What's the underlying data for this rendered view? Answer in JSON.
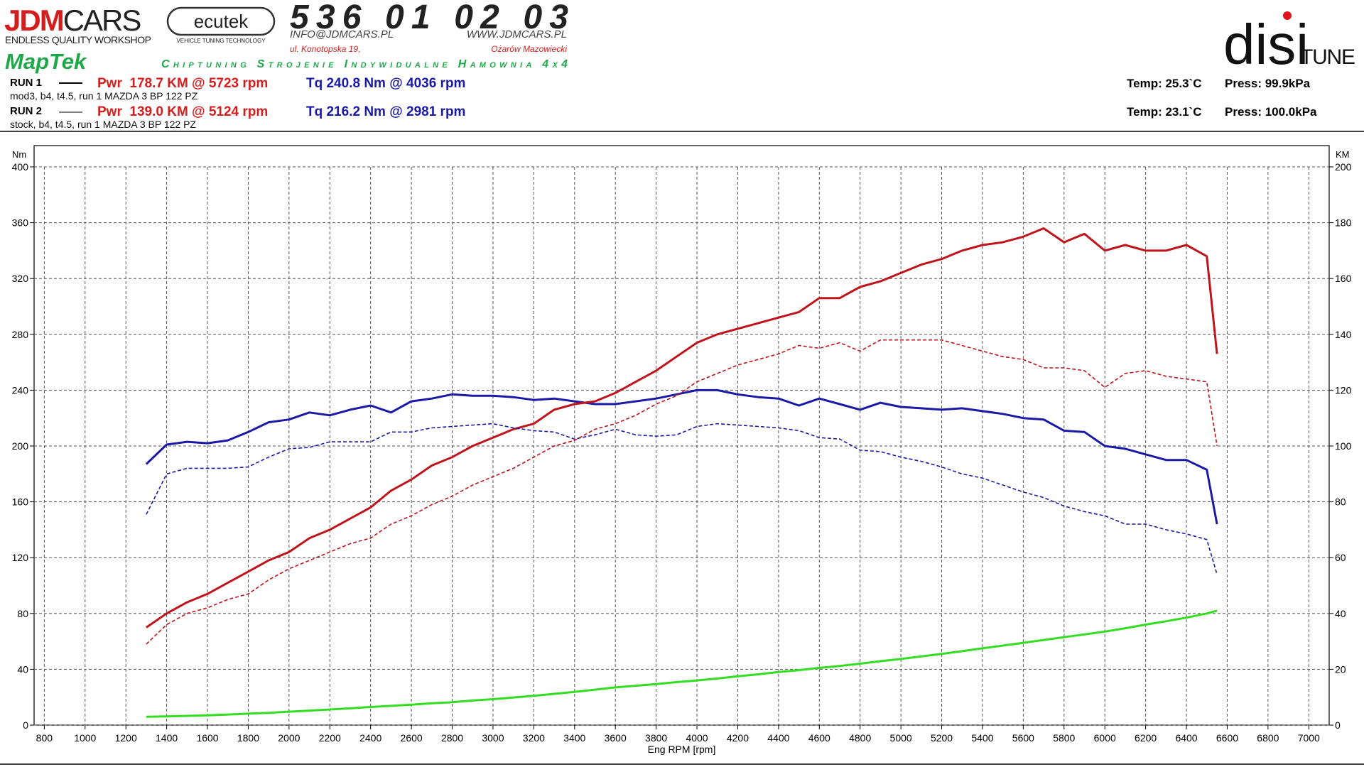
{
  "header": {
    "brand_red": "JDM",
    "brand_black": "CARS",
    "brand_tagline": "ENDLESS QUALITY WORKSHOP",
    "ecutek": "ecutek",
    "ecutek_tagline": "VEHICLE TUNING TECHNOLOGY",
    "phone": "536 01 02 03",
    "email": "INFO@JDMCARS.PL",
    "www": "WWW.JDMCARS.PL",
    "street": "ul. Konotopska 19,",
    "city": "Ożarów Mazowiecki",
    "maptek": "MapTek",
    "services": "Chiptuning Strojenie Indywidualne Hamownia 4x4",
    "disi": "disi",
    "tune": "TUNE"
  },
  "runs": [
    {
      "label": "RUN 1",
      "power": "Pwr  178.7 KM @ 5723 rpm",
      "torque": "Tq 240.8 Nm @ 4036 rpm",
      "desc": "mod3, b4, t4.5, run 1 MAZDA 3 BP 122 PZ",
      "temp": "Temp: 25.3`C",
      "press": "Press: 99.9kPa"
    },
    {
      "label": "RUN 2",
      "power": "Pwr  139.0 KM @ 5124 rpm",
      "torque": "Tq 216.2 Nm @ 2981 rpm",
      "desc": "stock, b4, t4.5, run 1 MAZDA 3 BP 122 PZ",
      "temp": "Temp: 23.1`C",
      "press": "Press: 100.0kPa"
    }
  ],
  "chart_data": {
    "type": "line",
    "xlabel": "Eng RPM [rpm]",
    "ylabel": "Nm",
    "y2label": "KM",
    "xlim": [
      750,
      7100
    ],
    "ylim": [
      0,
      400
    ],
    "y2lim": [
      0,
      200
    ],
    "xticks": [
      800,
      1000,
      1200,
      1400,
      1600,
      1800,
      2000,
      2200,
      2400,
      2600,
      2800,
      3000,
      3200,
      3400,
      3600,
      3800,
      4000,
      4200,
      4400,
      4600,
      4800,
      5000,
      5200,
      5400,
      5600,
      5800,
      6000,
      6200,
      6400,
      6600,
      6800,
      7000
    ],
    "yticks": [
      0,
      40,
      80,
      120,
      160,
      200,
      240,
      280,
      320,
      360,
      400
    ],
    "y2ticks": [
      0,
      20,
      40,
      60,
      80,
      100,
      120,
      140,
      160,
      180,
      200
    ],
    "grid": true,
    "x": [
      1300,
      1400,
      1500,
      1600,
      1700,
      1800,
      1900,
      2000,
      2100,
      2200,
      2300,
      2400,
      2500,
      2600,
      2700,
      2800,
      2900,
      3000,
      3100,
      3200,
      3300,
      3400,
      3500,
      3600,
      3700,
      3800,
      3900,
      4000,
      4100,
      4200,
      4300,
      4400,
      4500,
      4600,
      4700,
      4800,
      4900,
      5000,
      5100,
      5200,
      5300,
      5400,
      5500,
      5600,
      5700,
      5800,
      5900,
      6000,
      6100,
      6200,
      6300,
      6400,
      6500,
      6550
    ],
    "series": [
      {
        "color": "#1a1aa6",
        "dash": false,
        "axis": "y",
        "values": [
          187,
          201,
          203,
          202,
          204,
          210,
          217,
          219,
          224,
          222,
          226,
          229,
          224,
          232,
          234,
          237,
          236,
          236,
          235,
          233,
          234,
          232,
          230,
          230,
          232,
          234,
          237,
          240,
          240,
          237,
          235,
          234,
          229,
          234,
          230,
          226,
          231,
          228,
          227,
          226,
          227,
          225,
          223,
          220,
          219,
          211,
          210,
          200,
          198,
          194,
          190,
          190,
          183,
          144
        ]
      },
      {
        "color": "#c0141c",
        "dash": false,
        "axis": "y2",
        "values": [
          35,
          40,
          44,
          47,
          51,
          55,
          59,
          62,
          67,
          70,
          74,
          78,
          84,
          88,
          93,
          96,
          100,
          103,
          106,
          108,
          113,
          115,
          116,
          119,
          123,
          127,
          132,
          137,
          140,
          142,
          144,
          146,
          148,
          153,
          153,
          157,
          159,
          162,
          165,
          167,
          170,
          172,
          173,
          175,
          178,
          173,
          176,
          170,
          172,
          170,
          170,
          172,
          168,
          133
        ]
      },
      {
        "color": "#1a1aa6",
        "dash": true,
        "axis": "y",
        "values": [
          151,
          180,
          184,
          184,
          184,
          185,
          192,
          198,
          199,
          203,
          203,
          203,
          210,
          210,
          213,
          214,
          215,
          216,
          213,
          211,
          210,
          205,
          208,
          212,
          208,
          207,
          208,
          214,
          216,
          215,
          214,
          213,
          211,
          206,
          205,
          197,
          196,
          192,
          189,
          185,
          180,
          177,
          172,
          167,
          163,
          157,
          153,
          150,
          144,
          144,
          140,
          137,
          133,
          108
        ]
      },
      {
        "color": "#c0141c",
        "dash": true,
        "axis": "y2",
        "values": [
          29,
          36,
          40,
          42,
          45,
          47,
          52,
          56,
          59,
          62,
          65,
          67,
          72,
          75,
          79,
          82,
          86,
          89,
          92,
          96,
          100,
          102,
          106,
          108,
          111,
          115,
          118,
          123,
          126,
          129,
          131,
          133,
          136,
          135,
          137,
          134,
          138,
          138,
          138,
          138,
          136,
          134,
          132,
          131,
          128,
          128,
          127,
          121,
          126,
          127,
          125,
          124,
          123,
          100
        ]
      },
      {
        "color": "#33dd22",
        "dash": false,
        "axis": "y2",
        "values": [
          3.0,
          3.1,
          3.3,
          3.5,
          3.8,
          4.1,
          4.4,
          4.8,
          5.2,
          5.6,
          6.0,
          6.5,
          6.9,
          7.3,
          7.8,
          8.2,
          8.8,
          9.3,
          9.9,
          10.5,
          11.2,
          11.9,
          12.7,
          13.5,
          14.1,
          14.7,
          15.4,
          16.0,
          16.7,
          17.5,
          18.2,
          19.0,
          19.7,
          20.5,
          21.2,
          22.0,
          22.9,
          23.7,
          24.6,
          25.5,
          26.5,
          27.5,
          28.5,
          29.5,
          30.5,
          31.5,
          32.5,
          33.5,
          34.7,
          36.0,
          37.2,
          38.5,
          40.0,
          41.0
        ]
      }
    ]
  }
}
